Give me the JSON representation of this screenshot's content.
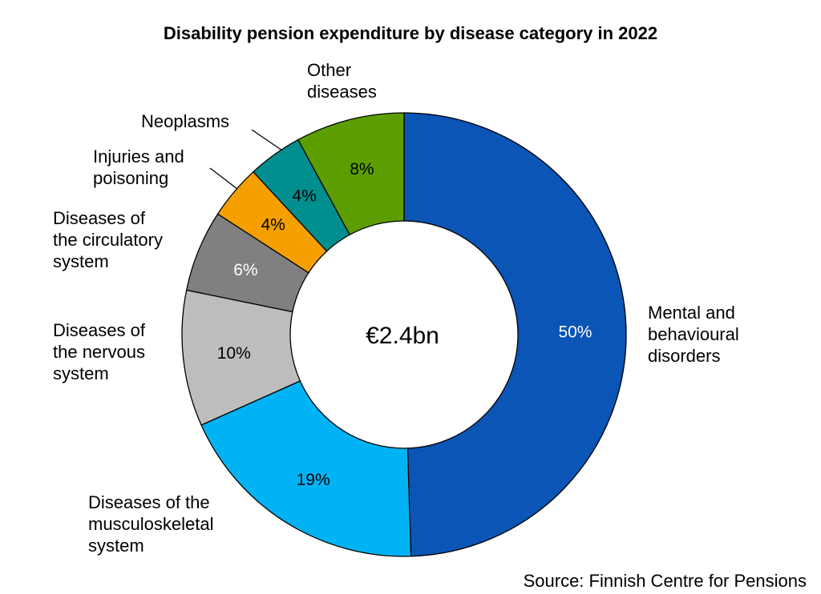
{
  "chart_data": {
    "type": "pie",
    "title": "Disability pension expenditure by disease category in 2022",
    "center_label": "€2.4bn",
    "source": "Source: Finnish Centre for Pensions",
    "slices": [
      {
        "name": "Mental and behavioural disorders",
        "label_lines": [
          "Mental and",
          "behavioural",
          "disorders"
        ],
        "value": 50,
        "pct_label": "50%",
        "color": "#0a55b5",
        "text_color": "#ffffff"
      },
      {
        "name": "Diseases of the musculoskeletal system",
        "label_lines": [
          "Diseases of the",
          "musculoskeletal",
          "system"
        ],
        "value": 19,
        "pct_label": "19%",
        "color": "#00b3f5",
        "text_color": "#000000"
      },
      {
        "name": "Diseases of the nervous system",
        "label_lines": [
          "Diseases of",
          "the nervous",
          "system"
        ],
        "value": 10,
        "pct_label": "10%",
        "color": "#bdbdbd",
        "text_color": "#000000"
      },
      {
        "name": "Diseases of the circulatory system",
        "label_lines": [
          "Diseases of",
          "the circulatory",
          "system"
        ],
        "value": 6,
        "pct_label": "6%",
        "color": "#808080",
        "text_color": "#ffffff"
      },
      {
        "name": "Injuries and poisoning",
        "label_lines": [
          "Injuries and",
          "poisoning"
        ],
        "value": 4,
        "pct_label": "4%",
        "color": "#f5a000",
        "text_color": "#000000"
      },
      {
        "name": "Neoplasms",
        "label_lines": [
          "Neoplasms"
        ],
        "value": 4,
        "pct_label": "4%",
        "color": "#008f8f",
        "text_color": "#000000"
      },
      {
        "name": "Other diseases",
        "label_lines": [
          "Other",
          "diseases"
        ],
        "value": 8,
        "pct_label": "8%",
        "color": "#5c9e00",
        "text_color": "#000000"
      }
    ]
  }
}
